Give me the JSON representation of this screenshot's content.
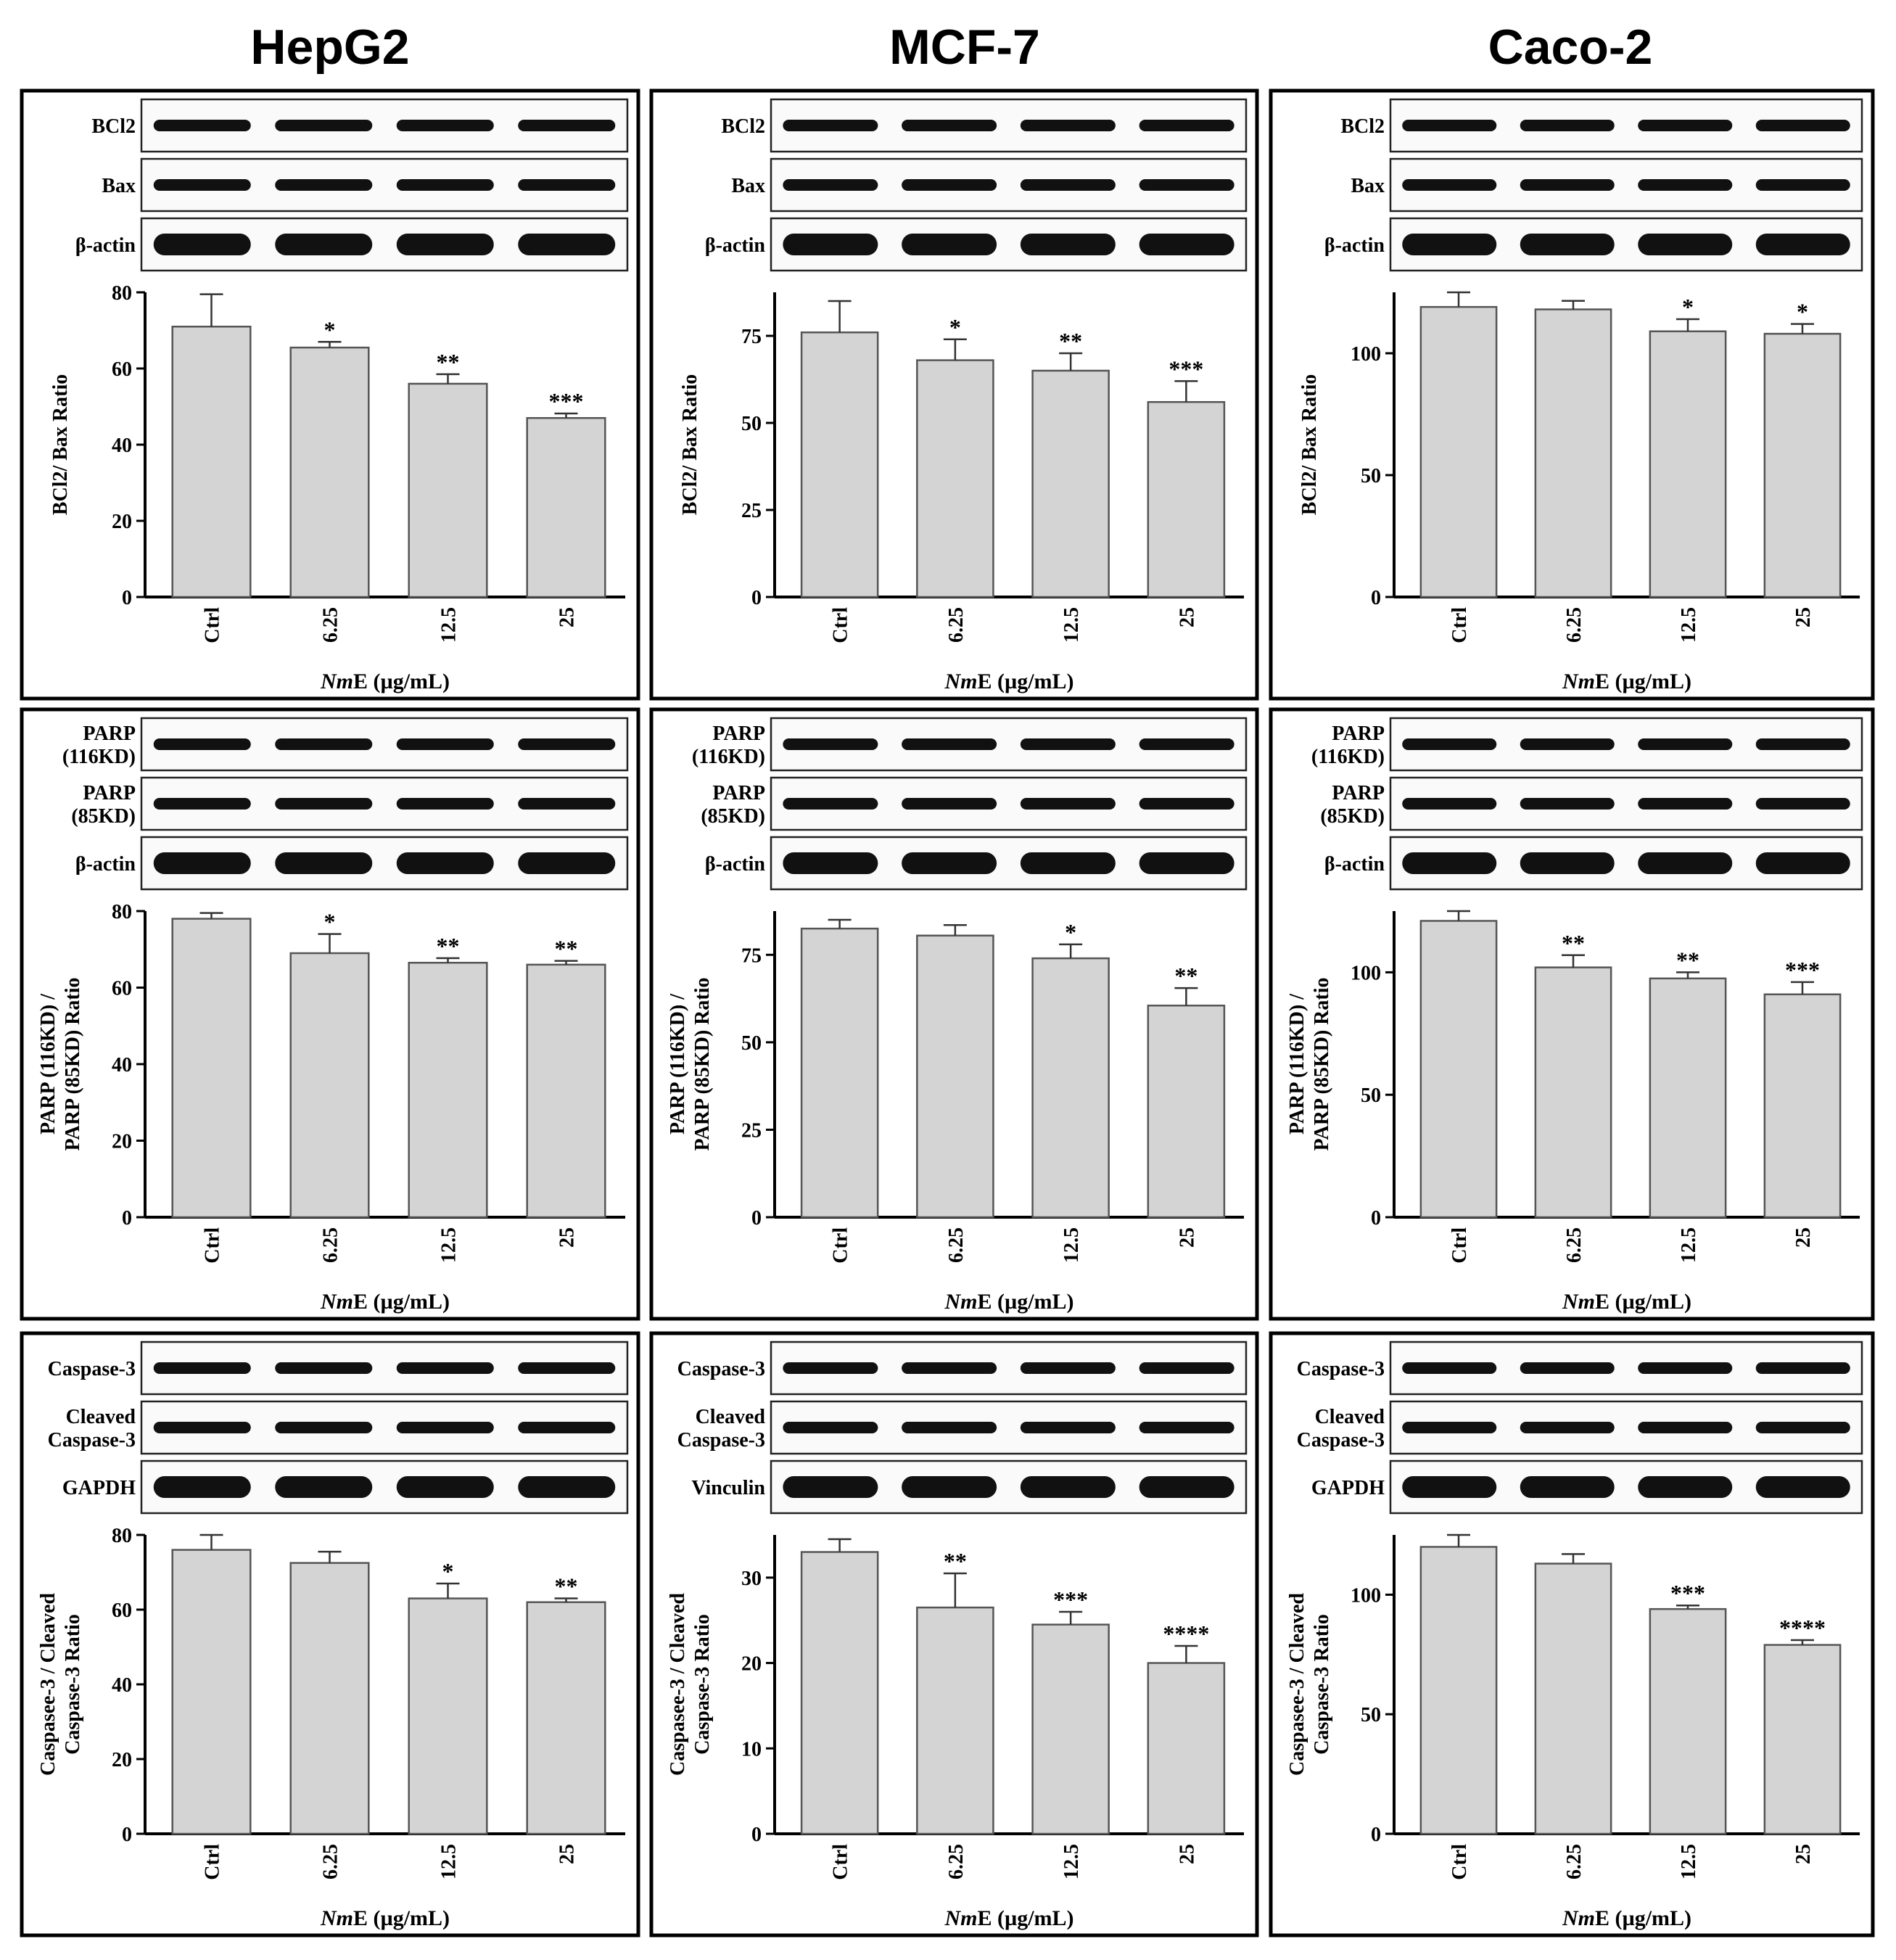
{
  "figure": {
    "column_titles": [
      "HepG2",
      "MCF-7",
      "Caco-2"
    ]
  },
  "chart_data": [
    {
      "type": "bar",
      "cell_line": "HepG2",
      "row": "BCl2/Bax",
      "blot_labels": [
        [
          "BCl2"
        ],
        [
          "Bax"
        ],
        [
          "β-actin"
        ]
      ],
      "categories": [
        "Ctrl",
        "6.25",
        "12.5",
        "25"
      ],
      "values": [
        71,
        65.5,
        56,
        47
      ],
      "errors": [
        8.5,
        1.5,
        2.5,
        1.2
      ],
      "significance": [
        "",
        "*",
        "**",
        "***"
      ],
      "ylabel": [
        "BCl2/ Bax Ratio"
      ],
      "xlabel": {
        "italic": "Nm",
        "rest": "E (µg/mL)"
      },
      "ylim": [
        0,
        80
      ],
      "yticks": [
        "0",
        "20",
        "40",
        "60",
        "80"
      ]
    },
    {
      "type": "bar",
      "cell_line": "MCF-7",
      "row": "BCl2/Bax",
      "blot_labels": [
        [
          "BCl2"
        ],
        [
          "Bax"
        ],
        [
          "β-actin"
        ]
      ],
      "categories": [
        "Ctrl",
        "6.25",
        "12.5",
        "25"
      ],
      "values": [
        76,
        68,
        65,
        56
      ],
      "errors": [
        9,
        6,
        5,
        6
      ],
      "significance": [
        "",
        "*",
        "**",
        "***"
      ],
      "ylabel": [
        "BCl2/ Bax Ratio"
      ],
      "xlabel": {
        "italic": "Nm",
        "rest": "E (µg/mL)"
      },
      "ylim": [
        0,
        87.5
      ],
      "yticks": [
        "0",
        "25",
        "50",
        "75"
      ]
    },
    {
      "type": "bar",
      "cell_line": "Caco-2",
      "row": "BCl2/Bax",
      "blot_labels": [
        [
          "BCl2"
        ],
        [
          "Bax"
        ],
        [
          "β-actin"
        ]
      ],
      "categories": [
        "Ctrl",
        "6.25",
        "12.5",
        "25"
      ],
      "values": [
        119,
        118,
        109,
        108
      ],
      "errors": [
        6,
        3.5,
        5,
        4
      ],
      "significance": [
        "",
        "",
        "*",
        "*"
      ],
      "ylabel": [
        "BCl2/ Bax Ratio"
      ],
      "xlabel": {
        "italic": "Nm",
        "rest": "E (µg/mL)"
      },
      "ylim": [
        0,
        125
      ],
      "yticks": [
        "0",
        "50",
        "100"
      ]
    },
    {
      "type": "bar",
      "cell_line": "HepG2",
      "row": "PARP",
      "blot_labels": [
        [
          "PARP",
          "(116KD)"
        ],
        [
          "PARP",
          "(85KD)"
        ],
        [
          "β-actin"
        ]
      ],
      "categories": [
        "Ctrl",
        "6.25",
        "12.5",
        "25"
      ],
      "values": [
        78,
        69,
        66.5,
        66
      ],
      "errors": [
        1.5,
        5,
        1.2,
        1
      ],
      "significance": [
        "",
        "*",
        "**",
        "**"
      ],
      "ylabel": [
        "PARP (116KD) /",
        "PARP (85KD) Ratio"
      ],
      "xlabel": {
        "italic": "Nm",
        "rest": "E (µg/mL)"
      },
      "ylim": [
        0,
        80
      ],
      "yticks": [
        "0",
        "20",
        "40",
        "60",
        "80"
      ]
    },
    {
      "type": "bar",
      "cell_line": "MCF-7",
      "row": "PARP",
      "blot_labels": [
        [
          "PARP",
          "(116KD)"
        ],
        [
          "PARP",
          "(85KD)"
        ],
        [
          "β-actin"
        ]
      ],
      "categories": [
        "Ctrl",
        "6.25",
        "12.5",
        "25"
      ],
      "values": [
        82.5,
        80.5,
        74,
        60.5
      ],
      "errors": [
        2.5,
        3,
        4,
        5
      ],
      "significance": [
        "",
        "",
        "*",
        "**"
      ],
      "ylabel": [
        "PARP (116KD) /",
        "PARP (85KD) Ratio"
      ],
      "xlabel": {
        "italic": "Nm",
        "rest": "E (µg/mL)"
      },
      "ylim": [
        0,
        87.5
      ],
      "yticks": [
        "0",
        "25",
        "50",
        "75"
      ]
    },
    {
      "type": "bar",
      "cell_line": "Caco-2",
      "row": "PARP",
      "blot_labels": [
        [
          "PARP",
          "(116KD)"
        ],
        [
          "PARP",
          "(85KD)"
        ],
        [
          "β-actin"
        ]
      ],
      "categories": [
        "Ctrl",
        "6.25",
        "12.5",
        "25"
      ],
      "values": [
        121,
        102,
        97.5,
        91
      ],
      "errors": [
        4,
        5,
        2.5,
        5
      ],
      "significance": [
        "",
        "**",
        "**",
        "***"
      ],
      "ylabel": [
        "PARP (116KD) /",
        "PARP (85KD) Ratio"
      ],
      "xlabel": {
        "italic": "Nm",
        "rest": "E (µg/mL)"
      },
      "ylim": [
        0,
        125
      ],
      "yticks": [
        "0",
        "50",
        "100"
      ]
    },
    {
      "type": "bar",
      "cell_line": "HepG2",
      "row": "Caspase-3",
      "blot_labels": [
        [
          "Caspase-3"
        ],
        [
          "Cleaved",
          "Caspase-3"
        ],
        [
          "GAPDH"
        ]
      ],
      "categories": [
        "Ctrl",
        "6.25",
        "12.5",
        "25"
      ],
      "values": [
        76,
        72.5,
        63,
        62
      ],
      "errors": [
        4,
        3,
        4,
        1
      ],
      "significance": [
        "",
        "",
        "*",
        "**"
      ],
      "ylabel": [
        "Caspasee-3 / Cleaved",
        "Caspase-3 Ratio"
      ],
      "xlabel": {
        "italic": "Nm",
        "rest": "E (µg/mL)"
      },
      "ylim": [
        0,
        80
      ],
      "yticks": [
        "0",
        "20",
        "40",
        "60",
        "80"
      ]
    },
    {
      "type": "bar",
      "cell_line": "MCF-7",
      "row": "Caspase-3",
      "blot_labels": [
        [
          "Caspase-3"
        ],
        [
          "Cleaved",
          "Caspase-3"
        ],
        [
          "Vinculin"
        ]
      ],
      "categories": [
        "Ctrl",
        "6.25",
        "12.5",
        "25"
      ],
      "values": [
        33,
        26.5,
        24.5,
        20
      ],
      "errors": [
        1.5,
        4,
        1.5,
        2
      ],
      "significance": [
        "",
        "**",
        "***",
        "****"
      ],
      "ylabel": [
        "Caspasee-3 / Cleaved",
        "Caspase-3 Ratio"
      ],
      "xlabel": {
        "italic": "Nm",
        "rest": "E (µg/mL)"
      },
      "ylim": [
        0,
        35
      ],
      "yticks": [
        "0",
        "10",
        "20",
        "30"
      ]
    },
    {
      "type": "bar",
      "cell_line": "Caco-2",
      "row": "Caspase-3",
      "blot_labels": [
        [
          "Caspase-3"
        ],
        [
          "Cleaved",
          "Caspase-3"
        ],
        [
          "GAPDH"
        ]
      ],
      "categories": [
        "Ctrl",
        "6.25",
        "12.5",
        "25"
      ],
      "values": [
        120,
        113,
        94,
        79
      ],
      "errors": [
        5,
        4,
        1.5,
        2
      ],
      "significance": [
        "",
        "",
        "***",
        "****"
      ],
      "ylabel": [
        "Caspasee-3 / Cleaved",
        "Caspase-3 Ratio"
      ],
      "xlabel": {
        "italic": "Nm",
        "rest": "E (µg/mL)"
      },
      "ylim": [
        0,
        125
      ],
      "yticks": [
        "0",
        "50",
        "100"
      ]
    }
  ]
}
